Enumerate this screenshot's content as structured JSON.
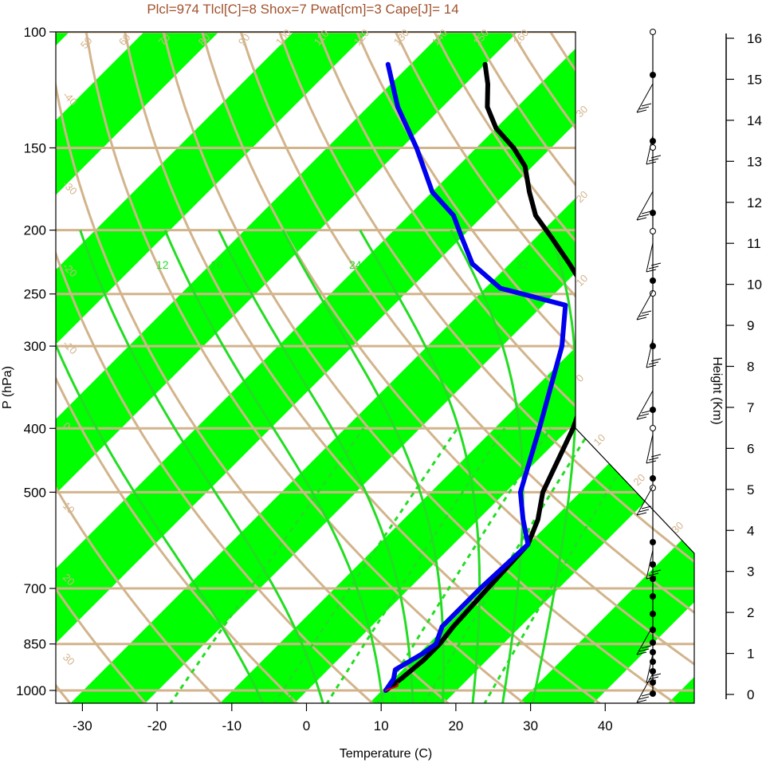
{
  "chart_data": {
    "type": "line",
    "subtitle": "Plcl=974 Tlcl[C]=8 Shox=7 Pwat[cm]=3 Cape[J]= 14",
    "xlabel": "Temperature (C)",
    "ylabel": "P (hPa)",
    "height_label": "Height (Km)",
    "x_ticks": [
      "-30",
      "-20",
      "-10",
      "0",
      "10",
      "20",
      "30",
      "40"
    ],
    "p_ticks": [
      "100",
      "150",
      "200",
      "250",
      "300",
      "400",
      "500",
      "700",
      "850",
      "1000"
    ],
    "height_ticks": [
      "0",
      "1",
      "2",
      "3",
      "4",
      "5",
      "6",
      "7",
      "8",
      "9",
      "10",
      "11",
      "12",
      "13",
      "14",
      "15",
      "16"
    ],
    "theta_labels": [
      "50",
      "60",
      "70",
      "80",
      "90",
      "100",
      "110",
      "120",
      "130",
      "140",
      "150",
      "160"
    ],
    "isotherm_labels": [
      "-40",
      "-30",
      "-20",
      "-10",
      "0",
      "10",
      "20",
      "30"
    ],
    "isotherm_labels_right": [
      "30",
      "20",
      "10",
      "0",
      "10",
      "20",
      "30"
    ],
    "mixing_ratio_labels": [
      "3",
      "8",
      "16",
      "24",
      "32",
      "12"
    ],
    "colors": {
      "temperature": "#000000",
      "dewpoint": "#0000ee",
      "parcel": "#dd0000",
      "isotherm_band": "#00ff00",
      "dry_adiabat": "#d2b48c",
      "moist_adiabat": "#22dd22",
      "title": "#a0522d"
    },
    "series": [
      {
        "id": "temperature",
        "points": [
          [
            10.5,
            1000
          ],
          [
            11.0,
            960
          ],
          [
            11.5,
            900
          ],
          [
            11.5,
            850
          ],
          [
            11.0,
            800
          ],
          [
            10.5,
            700
          ],
          [
            10.0,
            600
          ],
          [
            8.0,
            550
          ],
          [
            5.0,
            500
          ],
          [
            0.5,
            400
          ],
          [
            -5.0,
            320
          ],
          [
            -8.0,
            290
          ],
          [
            -11.0,
            260
          ],
          [
            -15.0,
            250
          ],
          [
            -18.0,
            240
          ],
          [
            -22.0,
            225
          ],
          [
            -28.0,
            205
          ],
          [
            -33.0,
            190
          ],
          [
            -37.0,
            175
          ],
          [
            -41.0,
            160
          ],
          [
            -45.0,
            150
          ],
          [
            -50.0,
            140
          ],
          [
            -54.0,
            130
          ],
          [
            -57.0,
            120
          ],
          [
            -60.0,
            112
          ]
        ],
        "name": ""
      },
      {
        "id": "dewpoint",
        "points": [
          [
            10.5,
            1000
          ],
          [
            10.0,
            960
          ],
          [
            9.0,
            930
          ],
          [
            10.5,
            880
          ],
          [
            11.0,
            850
          ],
          [
            9.5,
            800
          ],
          [
            9.5,
            700
          ],
          [
            10.0,
            600
          ],
          [
            6.0,
            550
          ],
          [
            2.0,
            500
          ],
          [
            -4.0,
            400
          ],
          [
            -12.0,
            300
          ],
          [
            -17.0,
            260
          ],
          [
            -28.0,
            245
          ],
          [
            -35.0,
            225
          ],
          [
            -40.0,
            205
          ],
          [
            -44.0,
            190
          ],
          [
            -50.0,
            175
          ],
          [
            -58.0,
            150
          ],
          [
            -66.0,
            130
          ],
          [
            -73.0,
            112
          ]
        ],
        "name": ""
      },
      {
        "id": "parcel",
        "points": [
          [
            10.5,
            1000
          ],
          [
            11.5,
            985
          ],
          [
            11.2,
            975
          ]
        ],
        "name": ""
      }
    ],
    "xlim": [
      -33,
      52
    ],
    "ylim": [
      1050,
      100
    ],
    "grid": true,
    "wind_barbs": true
  }
}
